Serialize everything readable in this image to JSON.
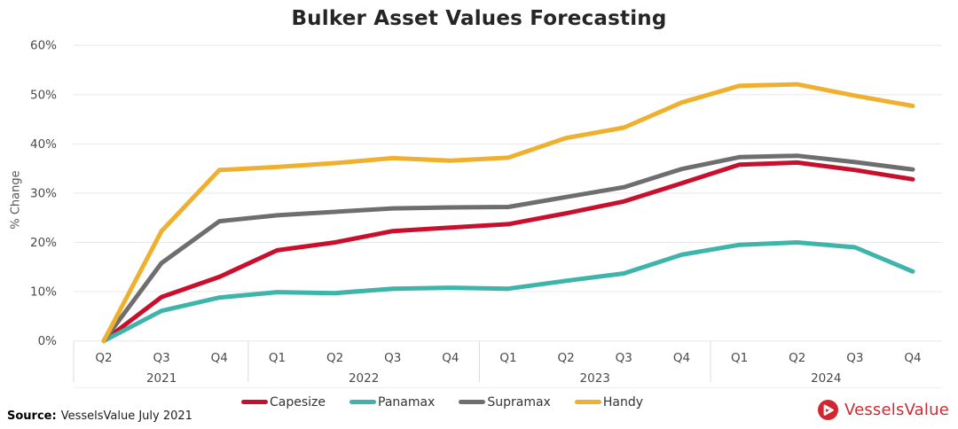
{
  "title": "Bulker Asset Values Forecasting",
  "y_axis": {
    "title": "% Change",
    "tick_labels": [
      "0%",
      "10%",
      "20%",
      "30%",
      "40%",
      "50%",
      "60%"
    ],
    "min": 0,
    "max": 60
  },
  "x_axis": {
    "quarter_labels": [
      "Q2",
      "Q3",
      "Q4",
      "Q1",
      "Q2",
      "Q3",
      "Q4",
      "Q1",
      "Q2",
      "Q3",
      "Q4",
      "Q1",
      "Q2",
      "Q3",
      "Q4"
    ],
    "year_groups": [
      {
        "label": "2021",
        "count": 3
      },
      {
        "label": "2022",
        "count": 4
      },
      {
        "label": "2023",
        "count": 4
      },
      {
        "label": "2024",
        "count": 4
      }
    ]
  },
  "chart_data": {
    "type": "line",
    "title": "Bulker Asset Values Forecasting",
    "xlabel": "",
    "ylabel": "% Change",
    "ylim": [
      0,
      60
    ],
    "grid": true,
    "legend_position": "bottom",
    "categories": [
      "Q2 2021",
      "Q3 2021",
      "Q4 2021",
      "Q1 2022",
      "Q2 2022",
      "Q3 2022",
      "Q4 2022",
      "Q1 2023",
      "Q2 2023",
      "Q3 2023",
      "Q4 2023",
      "Q1 2024",
      "Q2 2024",
      "Q3 2024",
      "Q4 2024"
    ],
    "series": [
      {
        "name": "Capesize",
        "color": "#c8102e",
        "values": [
          0,
          8.9,
          13.0,
          18.4,
          20.0,
          22.3,
          23.0,
          23.7,
          25.9,
          28.3,
          32.0,
          35.8,
          36.2,
          34.7,
          32.8
        ]
      },
      {
        "name": "Panamax",
        "color": "#3fb4ab",
        "values": [
          0,
          6.1,
          8.8,
          9.9,
          9.7,
          10.6,
          10.8,
          10.6,
          12.2,
          13.7,
          17.5,
          19.5,
          20.0,
          19.0,
          14.1
        ]
      },
      {
        "name": "Supramax",
        "color": "#6e6e6e",
        "values": [
          0,
          15.8,
          24.3,
          25.5,
          26.2,
          26.9,
          27.1,
          27.2,
          29.2,
          31.2,
          34.9,
          37.3,
          37.6,
          36.3,
          34.8
        ]
      },
      {
        "name": "Handy",
        "color": "#efb02f",
        "values": [
          0,
          22.3,
          34.7,
          35.3,
          36.1,
          37.1,
          36.6,
          37.2,
          41.2,
          43.3,
          48.4,
          51.8,
          52.1,
          49.8,
          47.7
        ]
      }
    ]
  },
  "footer": {
    "source_label": "Source:",
    "source_text": "VesselsValue July 2021"
  },
  "logo": {
    "text": "VesselsValue",
    "color": "#ce2b31",
    "icon_color": "#d22730"
  }
}
